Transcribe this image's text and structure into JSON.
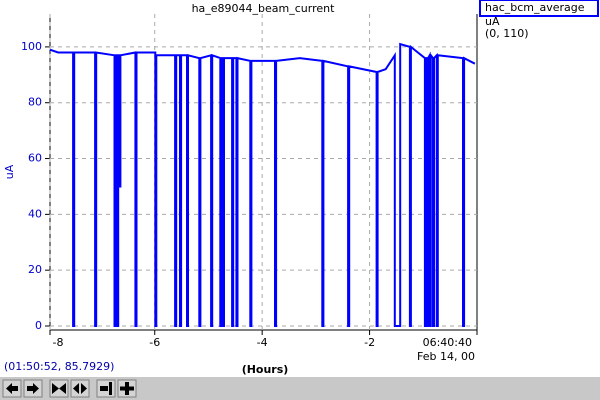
{
  "chart_data": {
    "type": "line",
    "title": "ha_e89044_beam_current",
    "ylabel": "uA",
    "xlabel": "(Hours)",
    "date_label": "Feb 14, 00",
    "legend_unit": "uA",
    "legend_range": "(0, 110)",
    "status": "(01:50:52, 85.7929)",
    "xlim": [
      -7.95,
      0
    ],
    "ylim": [
      0,
      110
    ],
    "xticks": [
      -8,
      -6,
      -4,
      -2,
      {
        "value": 0,
        "label": "06:40:40"
      }
    ],
    "yticks": [
      0,
      20,
      40,
      60,
      80,
      100
    ],
    "grid": true,
    "x": [
      -7.95,
      -7.8,
      -7.52,
      -7.52,
      -7.5,
      -7.5,
      -7.11,
      -7.11,
      -7.09,
      -7.09,
      -6.75,
      -6.75,
      -6.73,
      -6.73,
      -6.7,
      -6.7,
      -6.68,
      -6.68,
      -6.66,
      -6.66,
      -6.64,
      -6.64,
      -6.36,
      -6.36,
      -6.34,
      -6.34,
      -5.99,
      -5.99,
      -5.97,
      -5.97,
      -5.62,
      -5.62,
      -5.6,
      -5.6,
      -5.53,
      -5.53,
      -5.51,
      -5.51,
      -5.4,
      -5.4,
      -5.38,
      -5.38,
      -5.17,
      -5.17,
      -5.15,
      -5.15,
      -4.95,
      -4.95,
      -4.93,
      -4.93,
      -4.78,
      -4.78,
      -4.76,
      -4.76,
      -4.73,
      -4.73,
      -4.71,
      -4.71,
      -4.56,
      -4.56,
      -4.54,
      -4.54,
      -4.48,
      -4.48,
      -4.46,
      -4.46,
      -4.22,
      -4.22,
      -4.2,
      -4.2,
      -3.76,
      -3.76,
      -3.74,
      -3.74,
      -3.3,
      -2.88,
      -2.88,
      -2.86,
      -2.86,
      -2.4,
      -2.4,
      -2.38,
      -2.38,
      -1.87,
      -1.87,
      -1.85,
      -1.85,
      -1.7,
      -1.53,
      -1.53,
      -1.43,
      -1.43,
      -1.25,
      -1.25,
      -1.23,
      -1.23,
      -0.97,
      -0.97,
      -0.95,
      -0.95,
      -0.93,
      -0.93,
      -0.91,
      -0.91,
      -0.88,
      -0.88,
      -0.86,
      -0.86,
      -0.82,
      -0.82,
      -0.8,
      -0.8,
      -0.75,
      -0.75,
      -0.73,
      -0.73,
      -0.26,
      -0.26,
      -0.24,
      -0.24,
      -0.04
    ],
    "series": [
      {
        "name": "hac_bcm_average",
        "color": "#0000ff",
        "values": [
          99,
          98,
          98,
          0,
          0,
          98,
          98,
          0,
          0,
          98,
          97,
          0,
          0,
          97,
          97,
          0,
          0,
          97,
          97,
          50,
          50,
          97,
          98,
          0,
          0,
          98,
          98,
          0,
          0,
          97,
          97,
          0,
          0,
          97,
          97,
          0,
          0,
          97,
          97,
          0,
          0,
          97,
          96,
          0,
          0,
          96,
          97,
          0,
          0,
          97,
          96,
          0,
          0,
          96,
          96,
          0,
          0,
          96,
          96,
          0,
          0,
          96,
          96,
          0,
          0,
          96,
          95,
          0,
          0,
          95,
          95,
          0,
          0,
          95,
          96,
          95,
          0,
          0,
          95,
          93,
          0,
          0,
          93,
          91,
          0,
          0,
          91,
          92,
          97,
          0,
          0,
          101,
          100,
          0,
          0,
          100,
          96,
          0,
          0,
          96,
          96,
          0,
          0,
          96,
          97,
          0,
          0,
          97,
          96,
          0,
          0,
          96,
          97,
          0,
          0,
          97,
          96,
          0,
          0,
          96,
          94
        ]
      }
    ]
  }
}
